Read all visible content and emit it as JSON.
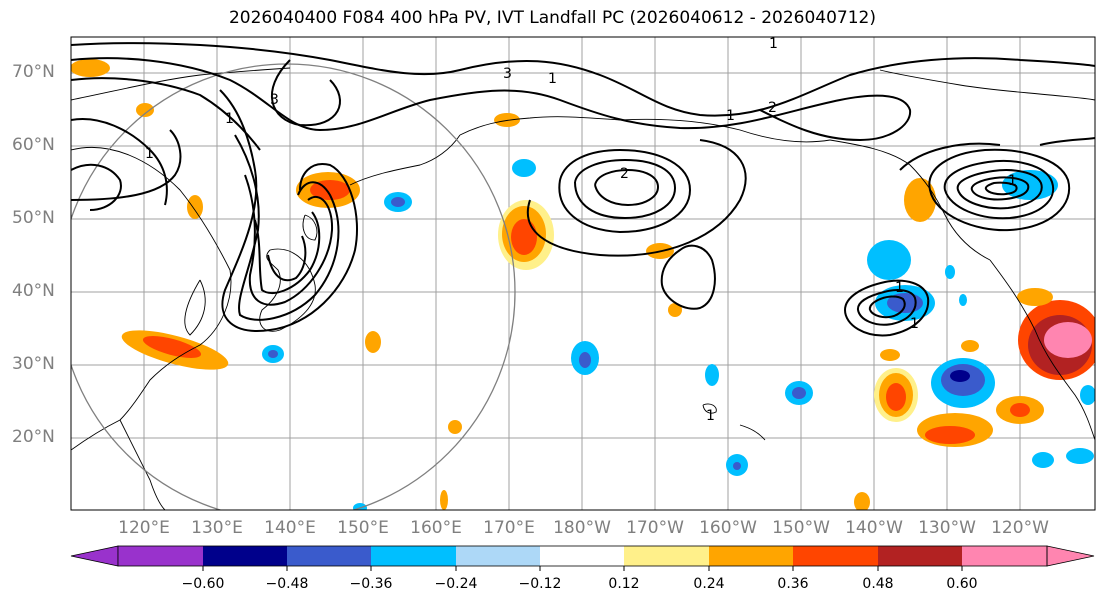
{
  "title": "2026040400 F084 400 hPa PV, IVT Landfall PC (2026040612 - 2026040712)",
  "lat_labels": [
    "70°N",
    "60°N",
    "50°N",
    "40°N",
    "30°N",
    "20°N"
  ],
  "lon_labels": [
    "120°E",
    "130°E",
    "140°E",
    "150°E",
    "160°E",
    "170°E",
    "180°W",
    "170°W",
    "160°W",
    "150°W",
    "140°W",
    "130°W",
    "120°W"
  ],
  "colorbar": {
    "colors": [
      "#9932cc",
      "#00008b",
      "#3a5bcc",
      "#00bfff",
      "#add8f7",
      "#ffffff",
      "#fff08a",
      "#ffa500",
      "#ff4500",
      "#b22222",
      "#ff85b0"
    ],
    "ticks": [
      "−0.60",
      "−0.48",
      "−0.36",
      "−0.24",
      "−0.12",
      "0.12",
      "0.24",
      "0.36",
      "0.48",
      "0.60"
    ]
  },
  "contour_labels": [
    "1",
    "1",
    "1",
    "1",
    "2",
    "2",
    "3",
    "3",
    "1",
    "1",
    "1",
    "1",
    "1"
  ]
}
